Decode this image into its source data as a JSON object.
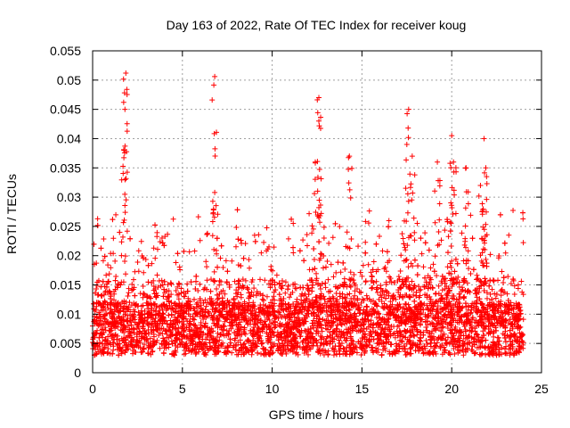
{
  "chart_data": {
    "type": "scatter",
    "title": "Day 163 of 2022, Rate Of TEC Index for receiver koug",
    "xlabel": "GPS time / hours",
    "ylabel": "ROTI / TECUs",
    "xlim": [
      0,
      25
    ],
    "ylim": [
      0,
      0.055
    ],
    "x_ticks": [
      0,
      5,
      10,
      15,
      20,
      25
    ],
    "x_tick_labels": [
      "0",
      "5",
      "10",
      "15",
      "20",
      "25"
    ],
    "y_ticks": [
      0,
      0.005,
      0.01,
      0.015,
      0.02,
      0.025,
      0.03,
      0.035,
      0.04,
      0.045,
      0.05,
      0.055
    ],
    "y_tick_labels": [
      "0",
      "0.005",
      "0.01",
      "0.015",
      "0.02",
      "0.025",
      "0.03",
      "0.035",
      "0.04",
      "0.045",
      "0.05",
      "0.055"
    ],
    "grid": true,
    "marker": "+",
    "series_color": "#ff0000",
    "data_range_hours": [
      0,
      24
    ],
    "baseline_band": [
      0.003,
      0.012
    ],
    "peaks": [
      {
        "x": 1.85,
        "y": 0.0512
      },
      {
        "x": 1.8,
        "y": 0.045
      },
      {
        "x": 1.75,
        "y": 0.038
      },
      {
        "x": 6.8,
        "y": 0.0506
      },
      {
        "x": 6.8,
        "y": 0.0308
      },
      {
        "x": 12.6,
        "y": 0.047
      },
      {
        "x": 12.6,
        "y": 0.043
      },
      {
        "x": 12.4,
        "y": 0.036
      },
      {
        "x": 14.3,
        "y": 0.037
      },
      {
        "x": 17.6,
        "y": 0.045
      },
      {
        "x": 17.5,
        "y": 0.039
      },
      {
        "x": 17.8,
        "y": 0.037
      },
      {
        "x": 19.2,
        "y": 0.036
      },
      {
        "x": 20.0,
        "y": 0.0405
      },
      {
        "x": 20.1,
        "y": 0.036
      },
      {
        "x": 21.8,
        "y": 0.04
      },
      {
        "x": 21.9,
        "y": 0.035
      },
      {
        "x": 21.6,
        "y": 0.032
      },
      {
        "x": 20.8,
        "y": 0.035
      }
    ]
  }
}
